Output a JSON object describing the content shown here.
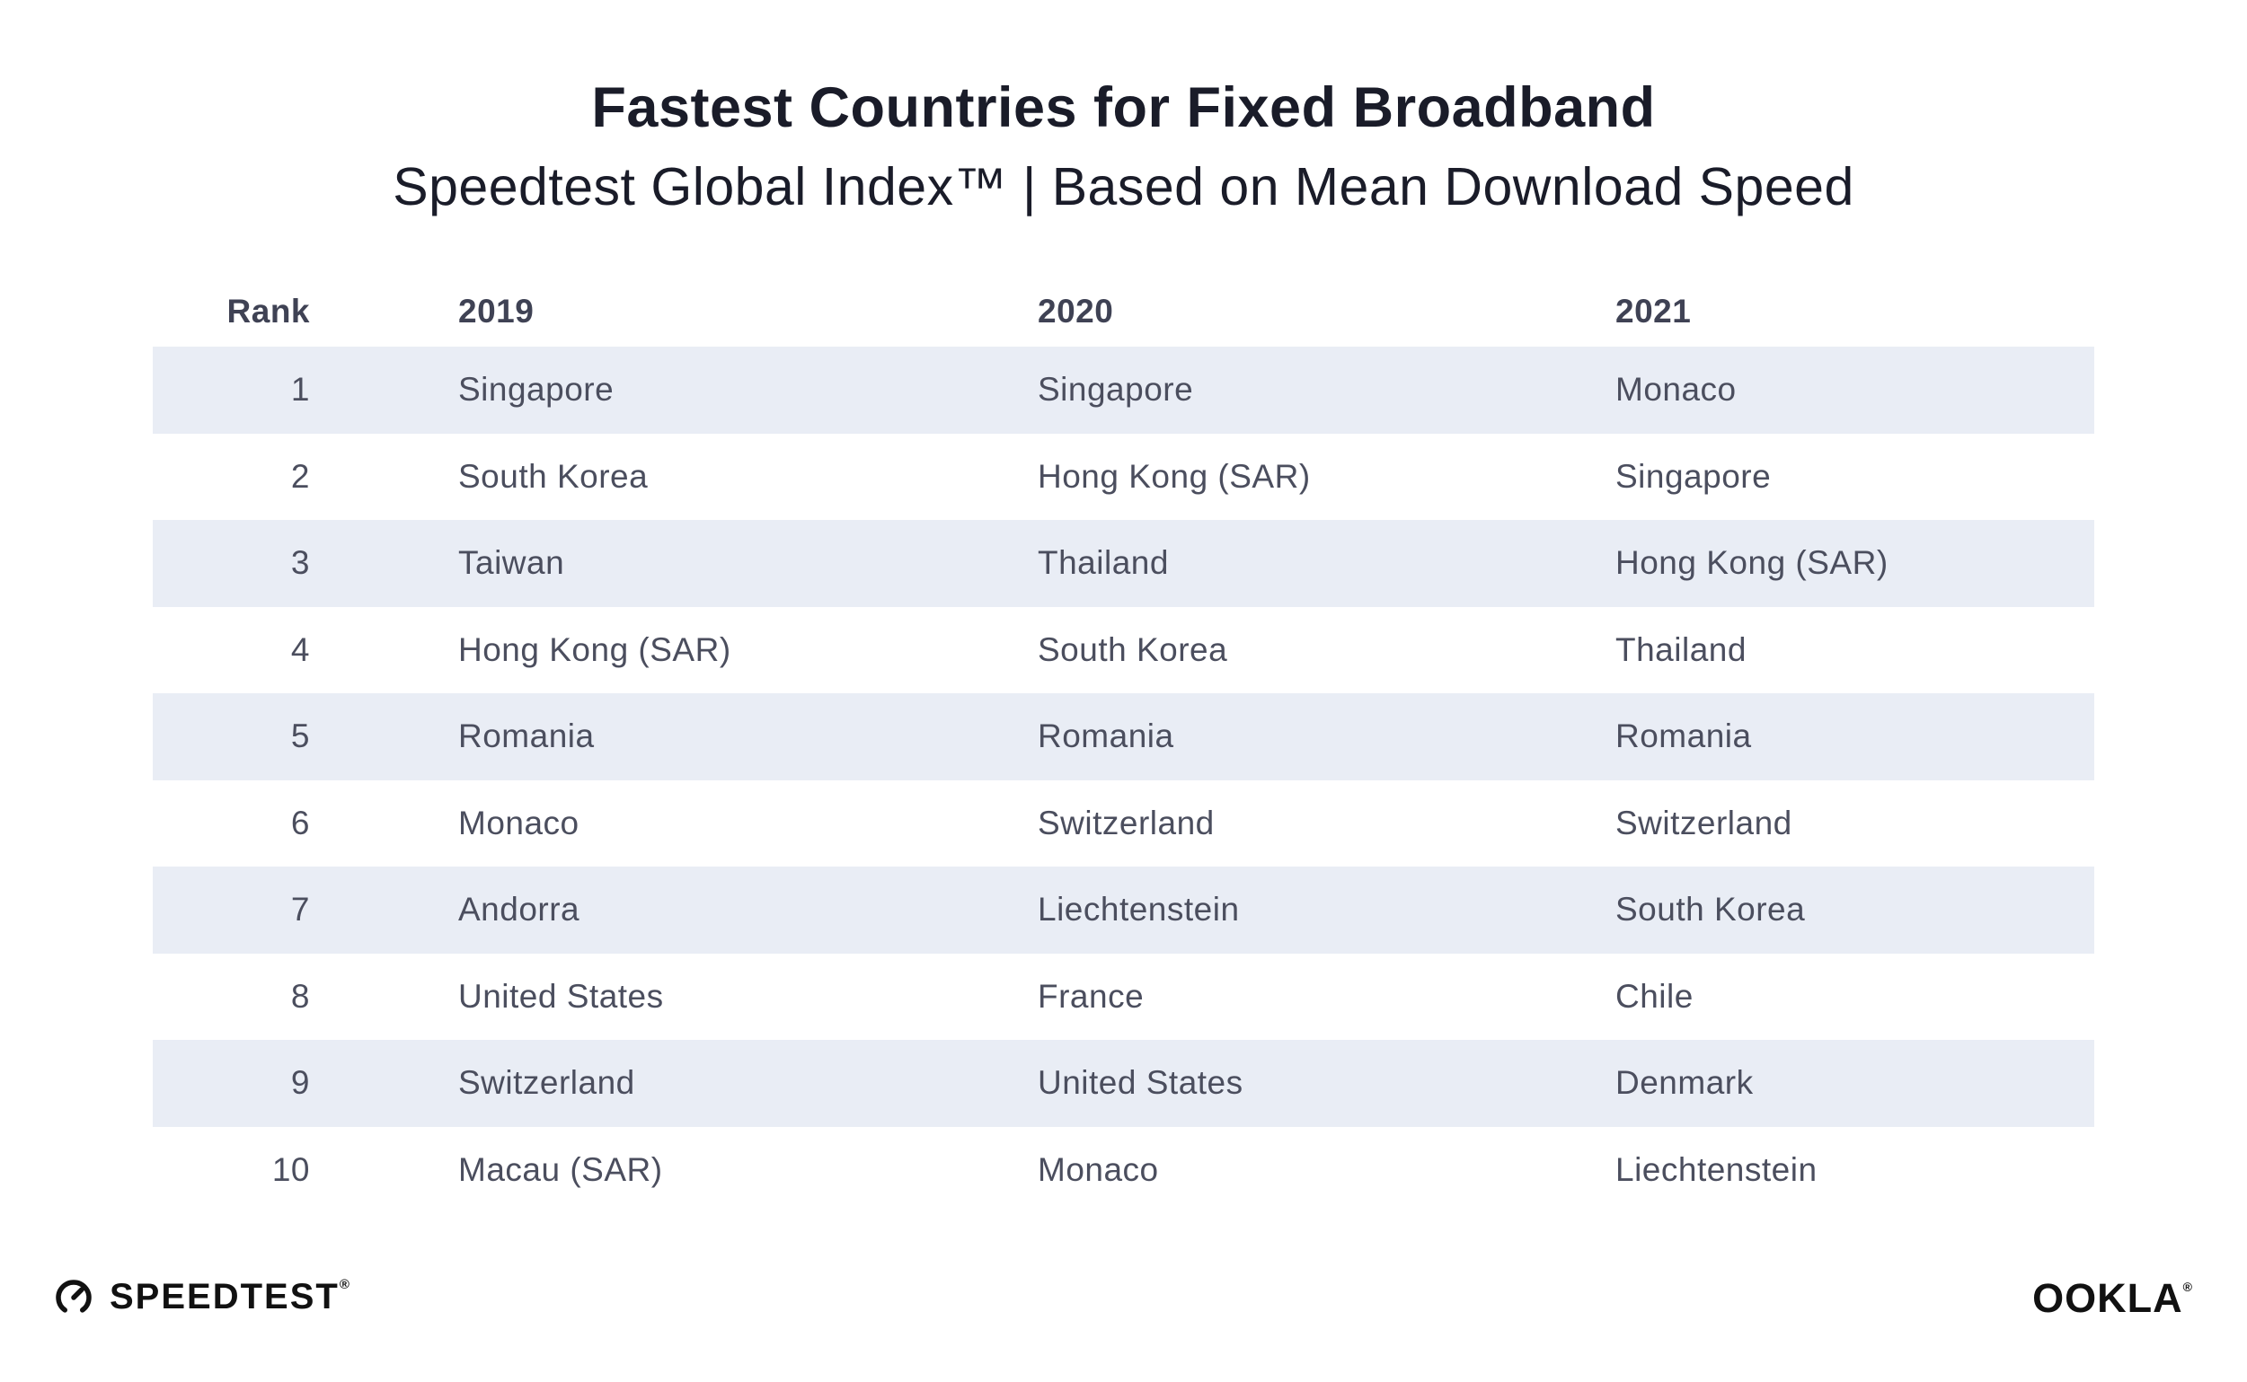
{
  "header": {
    "title": "Fastest Countries for Fixed Broadband",
    "subtitle": "Speedtest Global Index™ | Based on Mean Download Speed"
  },
  "chart_data": {
    "type": "table",
    "title": "Fastest Countries for Fixed Broadband",
    "subtitle": "Speedtest Global Index™ | Based on Mean Download Speed",
    "columns": [
      "Rank",
      "2019",
      "2020",
      "2021"
    ],
    "rows": [
      [
        "1",
        "Singapore",
        "Singapore",
        "Monaco"
      ],
      [
        "2",
        "South Korea",
        "Hong Kong (SAR)",
        "Singapore"
      ],
      [
        "3",
        "Taiwan",
        "Thailand",
        "Hong Kong (SAR)"
      ],
      [
        "4",
        "Hong Kong (SAR)",
        "South Korea",
        "Thailand"
      ],
      [
        "5",
        "Romania",
        "Romania",
        "Romania"
      ],
      [
        "6",
        "Monaco",
        "Switzerland",
        "Switzerland"
      ],
      [
        "7",
        "Andorra",
        "Liechtenstein",
        "South Korea"
      ],
      [
        "8",
        "United States",
        "France",
        "Chile"
      ],
      [
        "9",
        "Switzerland",
        "United States",
        "Denmark"
      ],
      [
        "10",
        "Macau (SAR)",
        "Monaco",
        "Liechtenstein"
      ]
    ],
    "layout": {
      "striped_rows": "odd rows shaded",
      "grid": false,
      "legend": "none"
    }
  },
  "footer": {
    "speedtest_label": "SPEEDTEST",
    "speedtest_trademark": "®",
    "ookla_label": "OOKLA",
    "ookla_trademark": "®"
  },
  "colors": {
    "row_shade": "#E9EDF5",
    "text_dark": "#1A1C29",
    "header_text": "#3F4254",
    "cell_text": "#4B4E5E",
    "logo_black": "#111111",
    "background": "#FFFFFF"
  }
}
